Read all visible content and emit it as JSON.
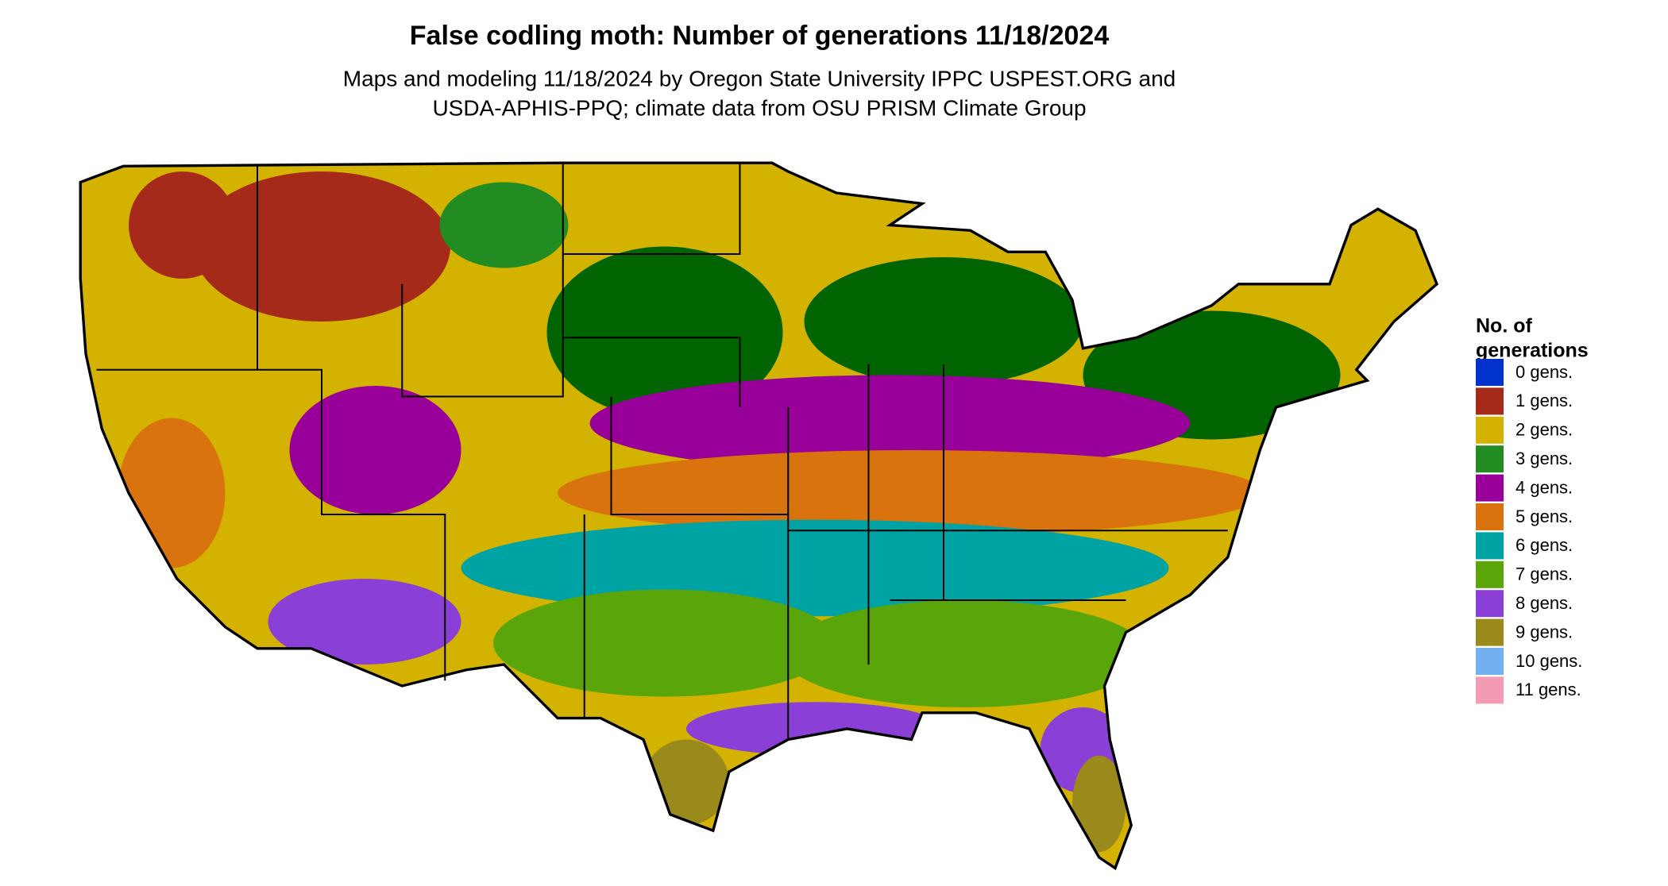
{
  "header": {
    "title": "False codling moth: Number of generations 11/18/2024",
    "subtitle_lines": [
      "Maps and modeling 11/18/2024 by Oregon State University IPPC USPEST.ORG and",
      "USDA-APHIS-PPQ; climate data from OSU PRISM Climate Group"
    ]
  },
  "legend": {
    "title_lines": [
      "No. of",
      "generations"
    ],
    "items": [
      {
        "label": "0 gens.",
        "color": "#0033cc"
      },
      {
        "label": "1 gens.",
        "color": "#a52a1a"
      },
      {
        "label": "2 gens.",
        "color": "#d4b200"
      },
      {
        "label": "3 gens.",
        "color": "#228b22"
      },
      {
        "label": "4 gens.",
        "color": "#990099"
      },
      {
        "label": "5 gens.",
        "color": "#d9730d"
      },
      {
        "label": "6 gens.",
        "color": "#00a3a3"
      },
      {
        "label": "7 gens.",
        "color": "#5aa50a"
      },
      {
        "label": "8 gens.",
        "color": "#8a3fd6"
      },
      {
        "label": "9 gens.",
        "color": "#9a8a1c"
      },
      {
        "label": "10 gens.",
        "color": "#72b0f0"
      },
      {
        "label": "11 gens.",
        "color": "#f29bb2"
      }
    ]
  }
}
